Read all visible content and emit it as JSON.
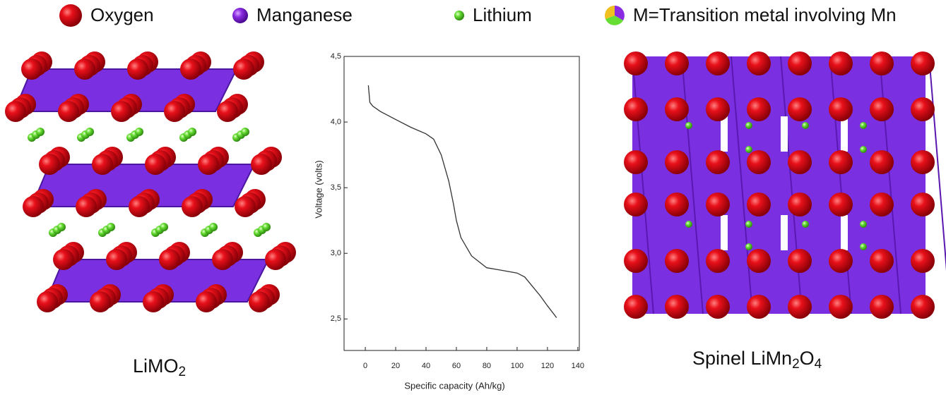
{
  "legend": [
    {
      "name": "Oxygen",
      "color": "#e0101a"
    },
    {
      "name": "Manganese",
      "color": "#8a2be2"
    },
    {
      "name": "Lithium",
      "color": "#66dd33"
    },
    {
      "name": "M=Transition metal involving Mn"
    }
  ],
  "structures": {
    "left": {
      "label_parts": [
        "LiMO",
        "2"
      ]
    },
    "right": {
      "label_parts": [
        "Spinel LiMn",
        "2",
        "O",
        "4"
      ]
    }
  },
  "chart_data": {
    "type": "line",
    "x_label": "Specific capacity (Ah/kg)",
    "y_label": "Voltage (volts)",
    "xlim": [
      -14,
      141
    ],
    "ylim": [
      2.26,
      4.5
    ],
    "xticks": [
      0,
      20,
      40,
      60,
      80,
      100,
      120,
      140
    ],
    "yticks": [
      {
        "value": 2.5,
        "label": "2,5"
      },
      {
        "value": 3.0,
        "label": "3,0"
      },
      {
        "value": 3.5,
        "label": "3,5"
      },
      {
        "value": 4.0,
        "label": "4,0"
      },
      {
        "value": 4.5,
        "label": "4,5"
      }
    ],
    "x": [
      2,
      3,
      5,
      10,
      20,
      30,
      40,
      45,
      50,
      55,
      58,
      60,
      63,
      70,
      80,
      90,
      100,
      105,
      110,
      115,
      120,
      126
    ],
    "series": [
      {
        "color": "#333333",
        "values": [
          4.28,
          4.15,
          4.12,
          4.08,
          4.02,
          3.96,
          3.91,
          3.87,
          3.75,
          3.55,
          3.38,
          3.25,
          3.12,
          2.98,
          2.89,
          2.87,
          2.85,
          2.82,
          2.75,
          2.68,
          2.6,
          2.51
        ]
      }
    ]
  }
}
